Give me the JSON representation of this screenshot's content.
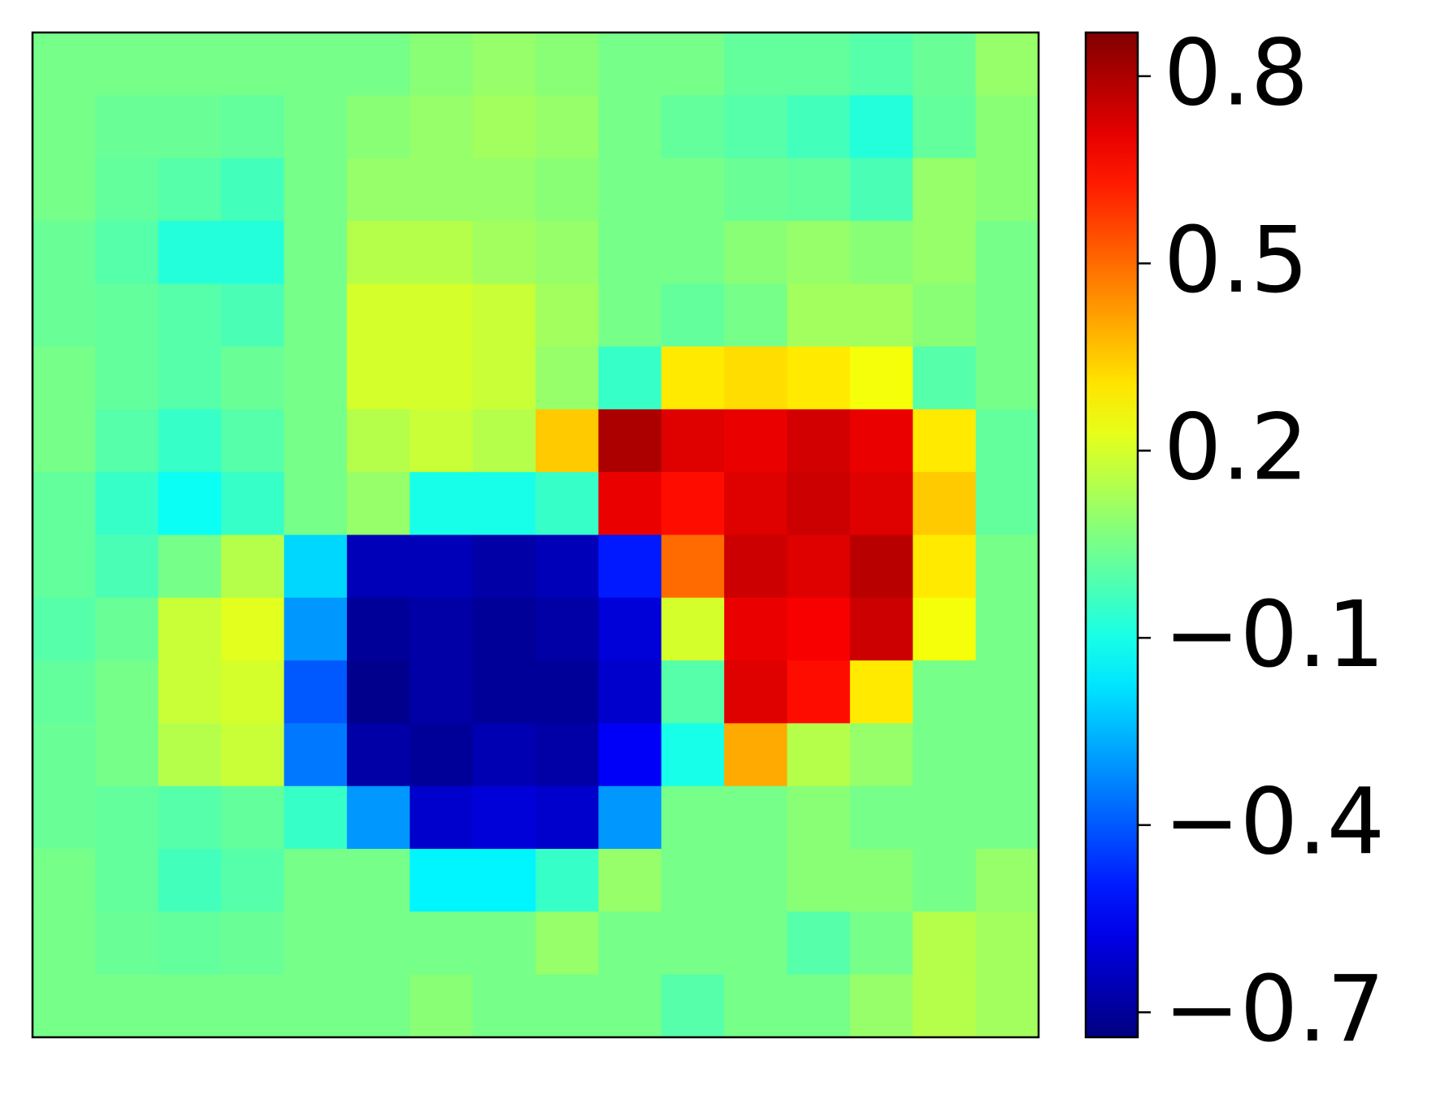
{
  "chart_data": {
    "type": "heatmap",
    "colormap": "jet",
    "clim": [
      -0.74,
      0.87
    ],
    "cticks": [
      {
        "value": -0.7,
        "label": "−0.7"
      },
      {
        "value": -0.4,
        "label": "−0.4"
      },
      {
        "value": -0.1,
        "label": "−0.1"
      },
      0.2,
      0.5,
      0.8
    ],
    "z": [
      [
        0.05,
        0.05,
        0.05,
        0.05,
        0.05,
        0.05,
        0.08,
        0.1,
        0.08,
        0.05,
        0.05,
        0.02,
        0.02,
        0,
        0.03,
        0.1
      ],
      [
        0.05,
        0.03,
        0.03,
        0.02,
        0.05,
        0.08,
        0.1,
        0.12,
        0.1,
        0.05,
        0.02,
        0,
        -0.03,
        -0.08,
        0.02,
        0.08
      ],
      [
        0.05,
        0.02,
        0,
        -0.03,
        0.05,
        0.1,
        0.1,
        0.1,
        0.08,
        0.05,
        0.05,
        0.03,
        0.02,
        -0.02,
        0.1,
        0.08
      ],
      [
        0.03,
        0,
        -0.08,
        -0.08,
        0.05,
        0.15,
        0.15,
        0.12,
        0.1,
        0.05,
        0.05,
        0.08,
        0.1,
        0.08,
        0.1,
        0.05
      ],
      [
        0.03,
        0.02,
        0,
        -0.02,
        0.05,
        0.2,
        0.2,
        0.18,
        0.12,
        0.05,
        0.02,
        0.05,
        0.12,
        0.12,
        0.08,
        0.05
      ],
      [
        0.05,
        0.02,
        0,
        0.03,
        0.05,
        0.2,
        0.2,
        0.18,
        0.1,
        -0.05,
        0.3,
        0.32,
        0.3,
        0.25,
        0,
        0.05
      ],
      [
        0.05,
        0,
        -0.05,
        0,
        0.05,
        0.15,
        0.18,
        0.15,
        0.35,
        0.8,
        0.72,
        0.7,
        0.74,
        0.7,
        0.3,
        0.02
      ],
      [
        0.02,
        -0.05,
        -0.12,
        -0.05,
        0.05,
        0.1,
        -0.1,
        -0.1,
        -0.05,
        0.7,
        0.65,
        0.72,
        0.75,
        0.72,
        0.35,
        0.02
      ],
      [
        0.02,
        -0.02,
        0.05,
        0.15,
        -0.2,
        -0.65,
        -0.65,
        -0.68,
        -0.65,
        -0.5,
        0.5,
        0.75,
        0.72,
        0.78,
        0.3,
        0.05
      ],
      [
        0,
        0.03,
        0.18,
        0.22,
        -0.3,
        -0.7,
        -0.68,
        -0.7,
        -0.68,
        -0.6,
        0.2,
        0.7,
        0.68,
        0.75,
        0.25,
        0.05
      ],
      [
        0.02,
        0.05,
        0.18,
        0.2,
        -0.4,
        -0.72,
        -0.68,
        -0.7,
        -0.7,
        -0.62,
        0,
        0.72,
        0.65,
        0.3,
        0.05,
        0.05
      ],
      [
        0.03,
        0.05,
        0.15,
        0.18,
        -0.35,
        -0.68,
        -0.7,
        -0.66,
        -0.68,
        -0.55,
        -0.1,
        0.4,
        0.15,
        0.1,
        0.05,
        0.05
      ],
      [
        0.03,
        0.02,
        0,
        0.02,
        -0.05,
        -0.3,
        -0.62,
        -0.6,
        -0.62,
        -0.3,
        0.05,
        0.05,
        0.08,
        0.05,
        0.05,
        0.05
      ],
      [
        0.05,
        0.02,
        -0.03,
        0,
        0.05,
        0.05,
        -0.15,
        -0.15,
        -0.05,
        0.1,
        0.05,
        0.05,
        0.08,
        0.08,
        0.05,
        0.1
      ],
      [
        0.05,
        0.03,
        0.02,
        0.03,
        0.05,
        0.05,
        0.05,
        0.05,
        0.1,
        0.05,
        0.05,
        0.05,
        0,
        0.05,
        0.15,
        0.12
      ],
      [
        0.05,
        0.05,
        0.05,
        0.05,
        0.05,
        0.05,
        0.08,
        0.05,
        0.05,
        0.05,
        0,
        0.05,
        0.05,
        0.1,
        0.15,
        0.12
      ]
    ]
  }
}
